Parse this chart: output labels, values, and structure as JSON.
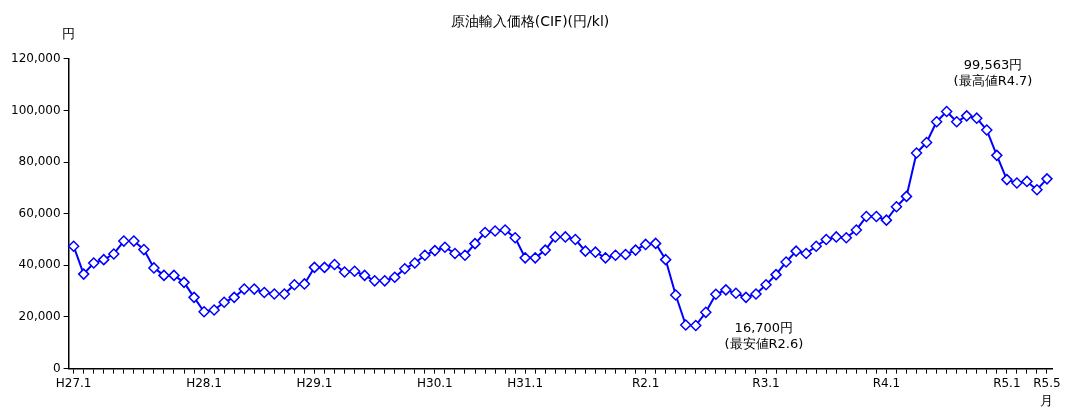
{
  "chart_data": {
    "type": "line",
    "title": "原油輸入価格(CIF)(円/kl)",
    "ylabel": "円",
    "xlabel": "月",
    "categories": [
      "H27.1",
      null,
      null,
      null,
      null,
      null,
      null,
      null,
      null,
      null,
      null,
      null,
      null,
      "H28.1",
      null,
      null,
      null,
      null,
      null,
      null,
      null,
      null,
      null,
      null,
      "H29.1",
      null,
      null,
      null,
      null,
      null,
      null,
      null,
      null,
      null,
      null,
      null,
      "H30.1",
      null,
      null,
      null,
      null,
      null,
      null,
      null,
      null,
      "H31.1",
      null,
      null,
      null,
      null,
      null,
      null,
      null,
      null,
      null,
      null,
      null,
      "R2.1",
      null,
      null,
      null,
      null,
      null,
      null,
      null,
      null,
      null,
      null,
      null,
      "R3.1",
      null,
      null,
      null,
      null,
      null,
      null,
      null,
      null,
      null,
      null,
      null,
      "R4.1",
      null,
      null,
      null,
      null,
      null,
      null,
      null,
      null,
      null,
      null,
      null,
      "R5.1",
      null,
      null,
      null,
      "R5.5"
    ],
    "series": [
      {
        "color": "#0000ff",
        "values": [
          47400,
          36600,
          40900,
          42200,
          44400,
          49400,
          49400,
          46100,
          39000,
          36100,
          36100,
          33400,
          27600,
          22000,
          22700,
          25700,
          27600,
          30800,
          30800,
          29500,
          28900,
          28900,
          32500,
          32800,
          39200,
          39200,
          40300,
          37400,
          37700,
          36100,
          34000,
          34000,
          35400,
          38700,
          40900,
          43900,
          45700,
          47000,
          44600,
          43900,
          48400,
          52700,
          53300,
          53700,
          50700,
          42900,
          42900,
          45900,
          51000,
          51000,
          50000,
          45500,
          45100,
          42900,
          43900,
          44200,
          45900,
          48100,
          48500,
          42200,
          28500,
          16900,
          16700,
          21800,
          28800,
          30500,
          29200,
          27600,
          28900,
          32500,
          36400,
          41300,
          45500,
          44600,
          47400,
          50000,
          51000,
          50700,
          53700,
          58900,
          58900,
          57500,
          62700,
          66700,
          83500,
          87600,
          95600,
          99563,
          95600,
          97900,
          97000,
          92400,
          82600,
          73200,
          71900,
          72500,
          69300,
          73500
        ]
      }
    ],
    "ylim": [
      0,
      120000
    ],
    "yticks": [
      0,
      {
        "value": 20000,
        "label": "20,000"
      },
      {
        "value": 40000,
        "label": "40,000"
      },
      {
        "value": 60000,
        "label": "60,000"
      },
      {
        "value": 80000,
        "label": "80,000"
      },
      {
        "value": 100000,
        "label": "100,000"
      },
      {
        "value": 120000,
        "label": "120,000"
      }
    ],
    "annotations": [
      "16,700円\n(最安値R2.6)",
      "99,563円\n(最高値R4.7)"
    ],
    "grid": false,
    "legend": false,
    "marker": "diamond",
    "line_style": "solid"
  }
}
